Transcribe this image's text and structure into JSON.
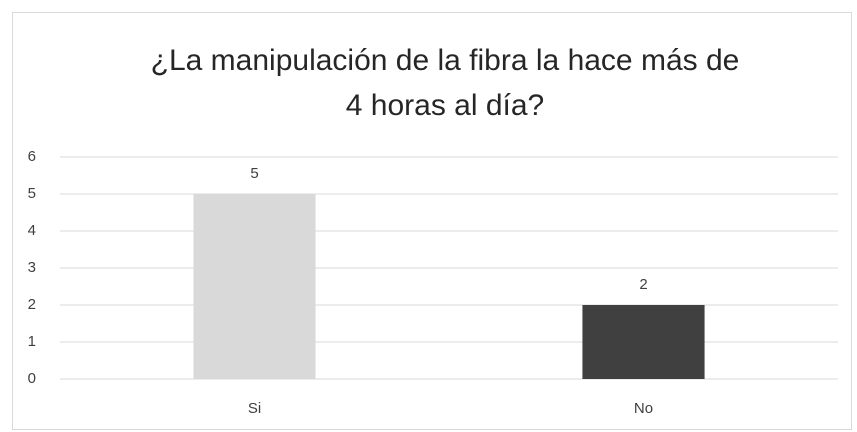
{
  "chart_data": {
    "type": "bar",
    "title": [
      "¿La manipulación de la fibra la hace más de",
      "4 horas al día?"
    ],
    "categories": [
      "Si",
      "No"
    ],
    "values": [
      5,
      2
    ],
    "colors": [
      "#d9d9d9",
      "#404040"
    ],
    "ylim": [
      0,
      6
    ],
    "yticks": [
      0,
      1,
      2,
      3,
      4,
      5,
      6
    ],
    "grid": true,
    "data_labels": true
  }
}
